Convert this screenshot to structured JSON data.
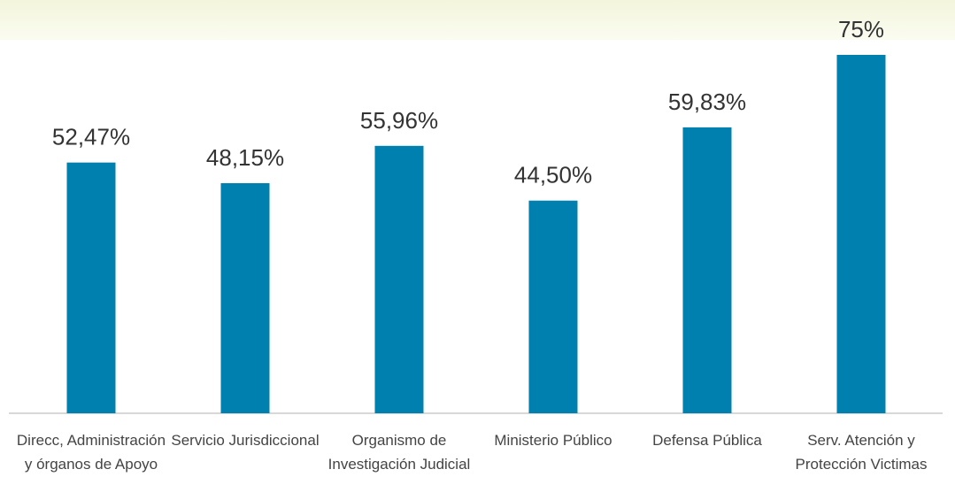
{
  "chart_data": {
    "type": "bar",
    "categories": [
      "Direcc, Administración y órganos de Apoyo",
      "Servicio Jurisdiccional",
      "Organismo de Investigación Judicial",
      "Ministerio Público",
      "Defensa Pública",
      "Serv. Atención y Protección Victimas"
    ],
    "values": [
      52.47,
      48.15,
      55.96,
      44.5,
      59.83,
      75
    ],
    "value_labels": [
      "52,47%",
      "48,15%",
      "55,96%",
      "44,50%",
      "59,83%",
      "75%"
    ],
    "color": "#0080ae"
  }
}
